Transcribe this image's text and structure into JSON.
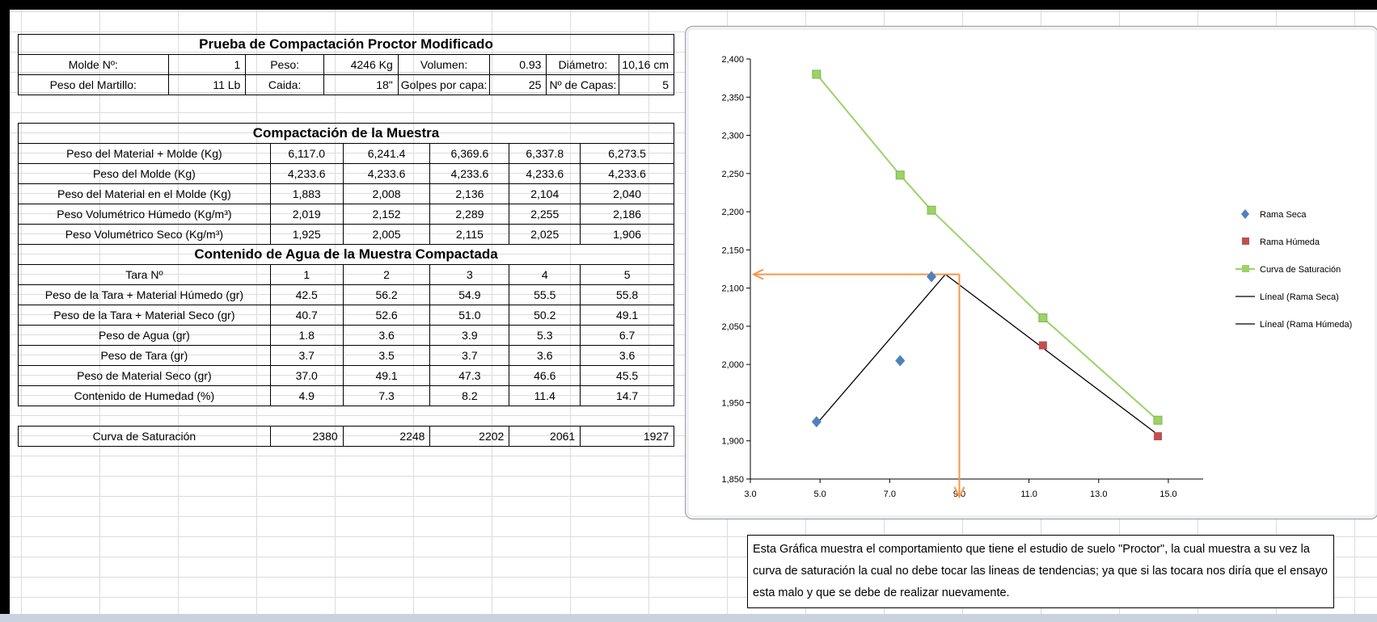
{
  "header": {
    "title": "Prueba de Compactación Proctor Modificado"
  },
  "molde": {
    "row1": [
      "Molde Nº:",
      "1",
      "Peso:",
      "4246 Kg",
      "Volumen:",
      "0.93",
      "Diámetro:",
      "10,16 cm"
    ],
    "row2": [
      "Peso del Martillo:",
      "11 Lb",
      "Caida:",
      "18\"",
      "Golpes por capa:",
      "25",
      "Nº de Capas:",
      "5"
    ]
  },
  "compactacion": {
    "title": "Compactación de la Muestra",
    "rows": [
      {
        "label": "Peso del Material + Molde (Kg)",
        "values": [
          "6,117.0",
          "6,241.4",
          "6,369.6",
          "6,337.8",
          "6,273.5"
        ]
      },
      {
        "label": "Peso del Molde (Kg)",
        "values": [
          "4,233.6",
          "4,233.6",
          "4,233.6",
          "4,233.6",
          "4,233.6"
        ]
      },
      {
        "label": "Peso del Material en el Molde (Kg)",
        "values": [
          "1,883",
          "2,008",
          "2,136",
          "2,104",
          "2,040"
        ]
      },
      {
        "label": "Peso Volumétrico Húmedo (Kg/m³)",
        "values": [
          "2,019",
          "2,152",
          "2,289",
          "2,255",
          "2,186"
        ]
      },
      {
        "label": "Peso Volumétrico Seco (Kg/m³)",
        "values": [
          "1,925",
          "2,005",
          "2,115",
          "2,025",
          "1,906"
        ]
      }
    ]
  },
  "contenido": {
    "title": "Contenido de Agua de la Muestra Compactada",
    "rows": [
      {
        "label": "Tara Nº",
        "values": [
          "1",
          "2",
          "3",
          "4",
          "5"
        ]
      },
      {
        "label": "Peso de la Tara + Material Húmedo (gr)",
        "values": [
          "42.5",
          "56.2",
          "54.9",
          "55.5",
          "55.8"
        ]
      },
      {
        "label": "Peso de la Tara + Material Seco (gr)",
        "values": [
          "40.7",
          "52.6",
          "51.0",
          "50.2",
          "49.1"
        ]
      },
      {
        "label": "Peso de Agua (gr)",
        "values": [
          "1.8",
          "3.6",
          "3.9",
          "5.3",
          "6.7"
        ]
      },
      {
        "label": "Peso de Tara (gr)",
        "values": [
          "3.7",
          "3.5",
          "3.7",
          "3.6",
          "3.6"
        ]
      },
      {
        "label": "Peso de Material Seco (gr)",
        "values": [
          "37.0",
          "49.1",
          "47.3",
          "46.6",
          "45.5"
        ]
      },
      {
        "label": "Contenido de Humedad (%)",
        "values": [
          "4.9",
          "7.3",
          "8.2",
          "11.4",
          "14.7"
        ]
      }
    ]
  },
  "saturacion": {
    "label": "Curva de Saturación",
    "values": [
      "2380",
      "2248",
      "2202",
      "2061",
      "1927"
    ]
  },
  "note": "Esta Gráfica muestra el comportamiento que tiene el estudio de suelo \"Proctor\", la cual muestra a su vez la curva de saturación la cual no debe tocar las lineas de tendencias; ya que si las tocara nos diría que el ensayo esta malo y que se debe de realizar nuevamente.",
  "chart_data": {
    "type": "scatter",
    "xlim": [
      3.0,
      16.0
    ],
    "ylim": [
      1850,
      2400
    ],
    "x_ticks": [
      "3.0",
      "5.0",
      "7.0",
      "9.0",
      "11.0",
      "13.0",
      "15.0"
    ],
    "y_ticks": [
      "1,850",
      "1,900",
      "1,950",
      "2,000",
      "2,050",
      "2,100",
      "2,150",
      "2,200",
      "2,250",
      "2,300",
      "2,350",
      "2,400"
    ],
    "legend_position": "right",
    "colors": {
      "seca": "#4f81bd",
      "humeda": "#c0504d",
      "saturacion": "#9bd26a",
      "trend": "#000000",
      "guide": "#f79646"
    },
    "series": [
      {
        "name": "Rama Seca",
        "marker": "diamond",
        "x": [
          4.9,
          7.3,
          8.2
        ],
        "y": [
          1925,
          2005,
          2115
        ]
      },
      {
        "name": "Rama Húmeda",
        "marker": "square",
        "x": [
          11.4,
          14.7
        ],
        "y": [
          2025,
          1906
        ]
      },
      {
        "name": "Curva de Saturación",
        "marker": "square-line",
        "x": [
          4.9,
          7.3,
          8.2,
          11.4,
          14.7
        ],
        "y": [
          2380,
          2248,
          2202,
          2061,
          1927
        ]
      },
      {
        "name": "Líneal (Rama Seca)",
        "type": "trendline",
        "x": [
          4.9,
          8.6
        ],
        "y": [
          1922,
          2118
        ]
      },
      {
        "name": "Líneal (Rama Húmeda)",
        "type": "trendline",
        "x": [
          8.6,
          14.7
        ],
        "y": [
          2118,
          1908
        ]
      }
    ],
    "guide": {
      "x": 9.0,
      "y": 2118
    }
  }
}
